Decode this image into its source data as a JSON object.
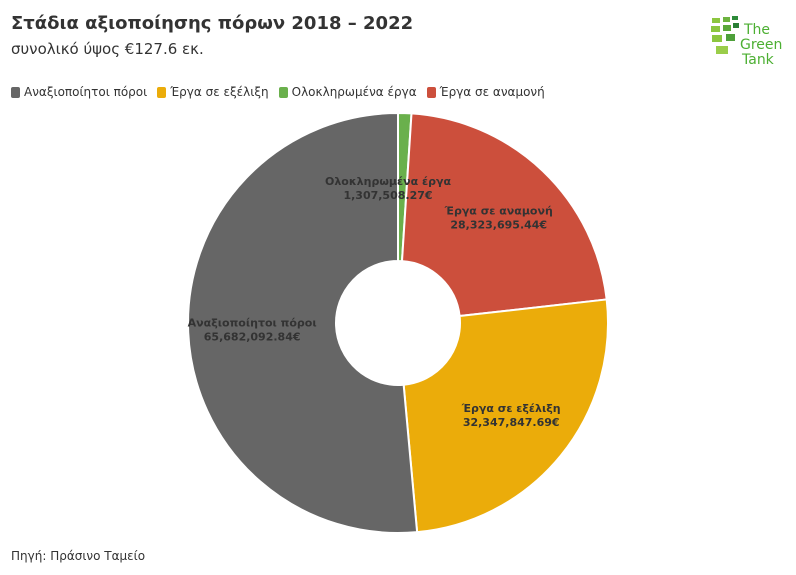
{
  "title": "Στάδια αξιοποίησης πόρων 2018 – 2022",
  "subtitle": "συνολικό ύψος €127.6 εκ.",
  "source": "Πηγή: Πράσινο Ταμείο",
  "logo_text": "The Green Tank",
  "chart_data": {
    "type": "pie",
    "donut": true,
    "legend_position": "top-left",
    "categories": [
      "Αναξιοποίητοι πόροι",
      "Έργα σε εξέλιξη",
      "Ολοκληρωμένα έργα",
      "Έργα σε αναμονή"
    ],
    "values": [
      65682092.84,
      32347847.69,
      1307508.27,
      28323695.44
    ],
    "data_labels": [
      "65,682,092.84€",
      "32,347,847.69€",
      "1,307,508.27€",
      "28,323,695.44€"
    ],
    "colors": [
      "#666666",
      "#ebac0a",
      "#6ab04c",
      "#cc4f3c"
    ],
    "draw_order": [
      2,
      3,
      1,
      0
    ]
  }
}
